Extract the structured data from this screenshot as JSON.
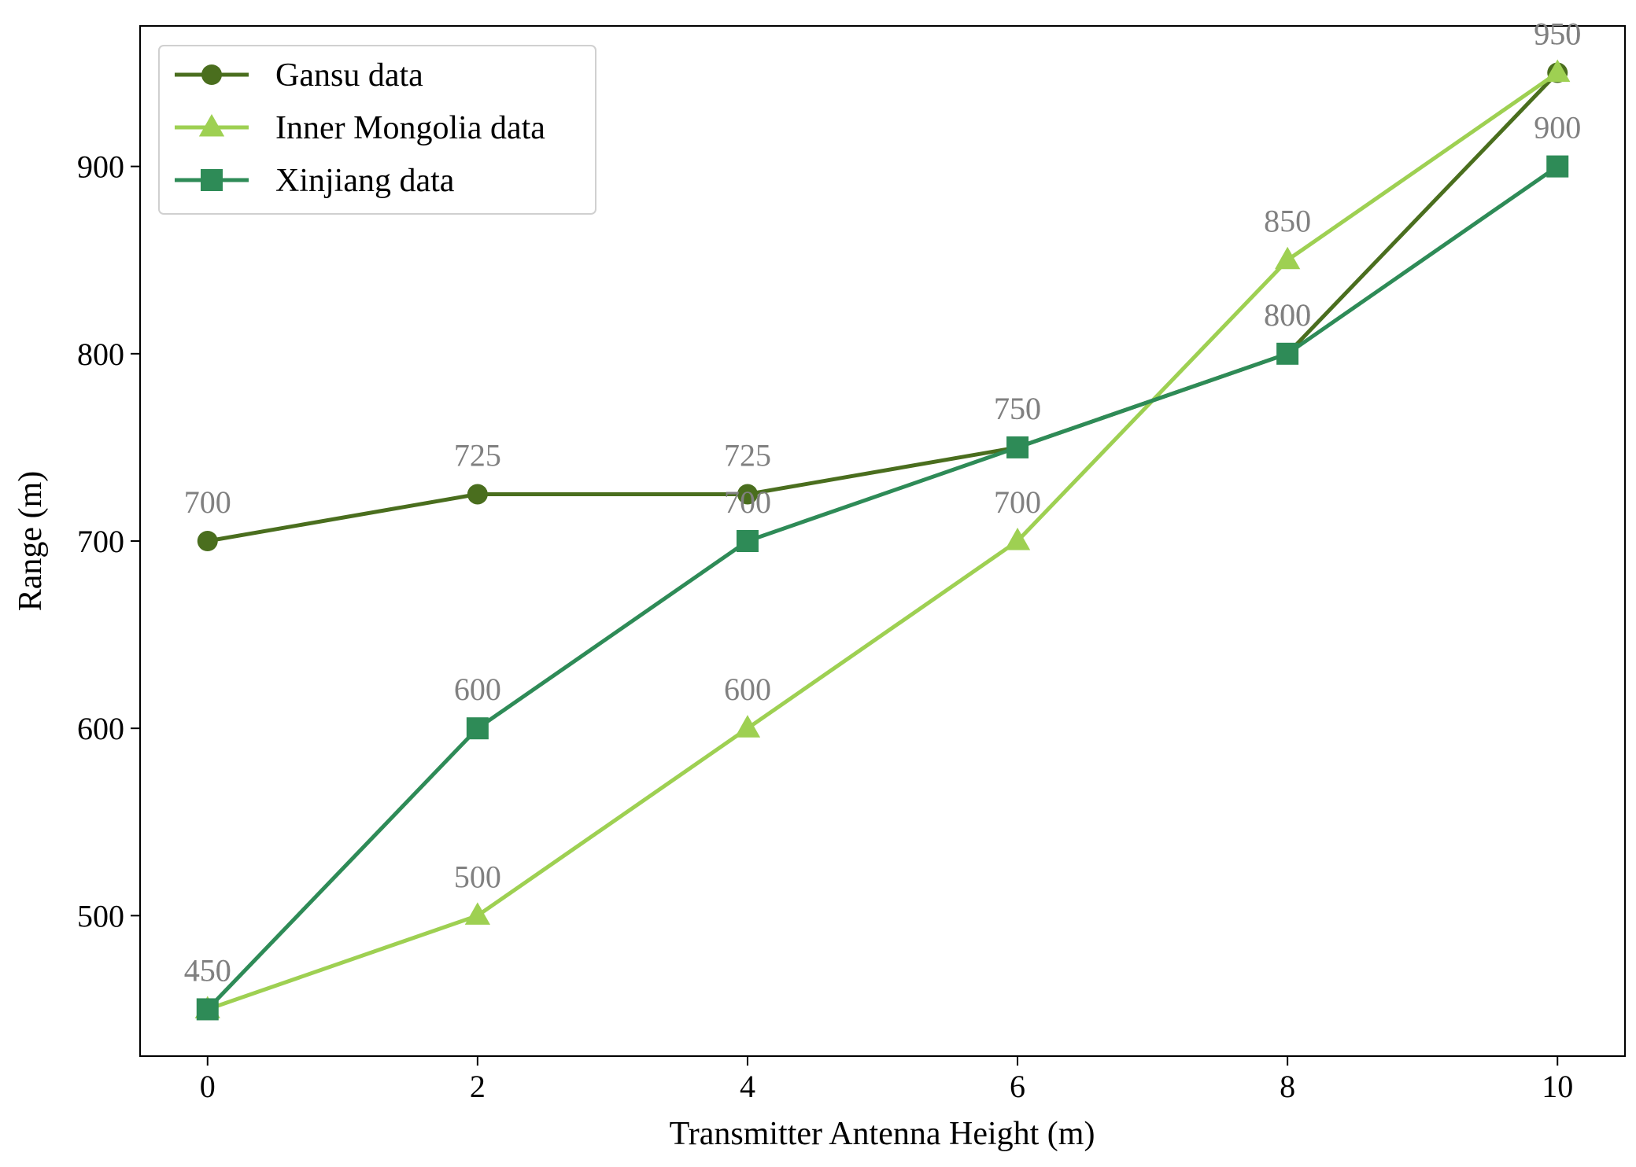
{
  "chart_data": {
    "type": "line",
    "title": "",
    "xlabel": "Transmitter Antenna Height (m)",
    "ylabel": "Range (m)",
    "x": [
      0,
      2,
      4,
      6,
      8,
      10
    ],
    "xlim": [
      -0.5,
      10.5
    ],
    "ylim": [
      425,
      975
    ],
    "xticks": [
      "0",
      "2",
      "4",
      "6",
      "8",
      "10"
    ],
    "yticks": [
      "500",
      "600",
      "700",
      "800",
      "900"
    ],
    "grid": false,
    "legend_position": "top-left",
    "data_label_color": "#808080",
    "series": [
      {
        "name": "Gansu data",
        "marker": "circle",
        "color": "#4a6e1e",
        "values": [
          700,
          725,
          725,
          750,
          800,
          950
        ],
        "labels": [
          "700",
          "725",
          "725",
          "750",
          "800",
          "950"
        ]
      },
      {
        "name": "Inner Mongolia data",
        "marker": "triangle",
        "color": "#9ed052",
        "values": [
          450,
          500,
          600,
          700,
          850,
          950
        ],
        "labels": [
          "450",
          "500",
          "600",
          "700",
          "850",
          "950"
        ]
      },
      {
        "name": "Xinjiang data",
        "marker": "square",
        "color": "#2e8b57",
        "values": [
          450,
          600,
          700,
          750,
          800,
          900
        ],
        "labels": [
          "450",
          "600",
          "700",
          "750",
          "800",
          "900"
        ]
      }
    ]
  }
}
